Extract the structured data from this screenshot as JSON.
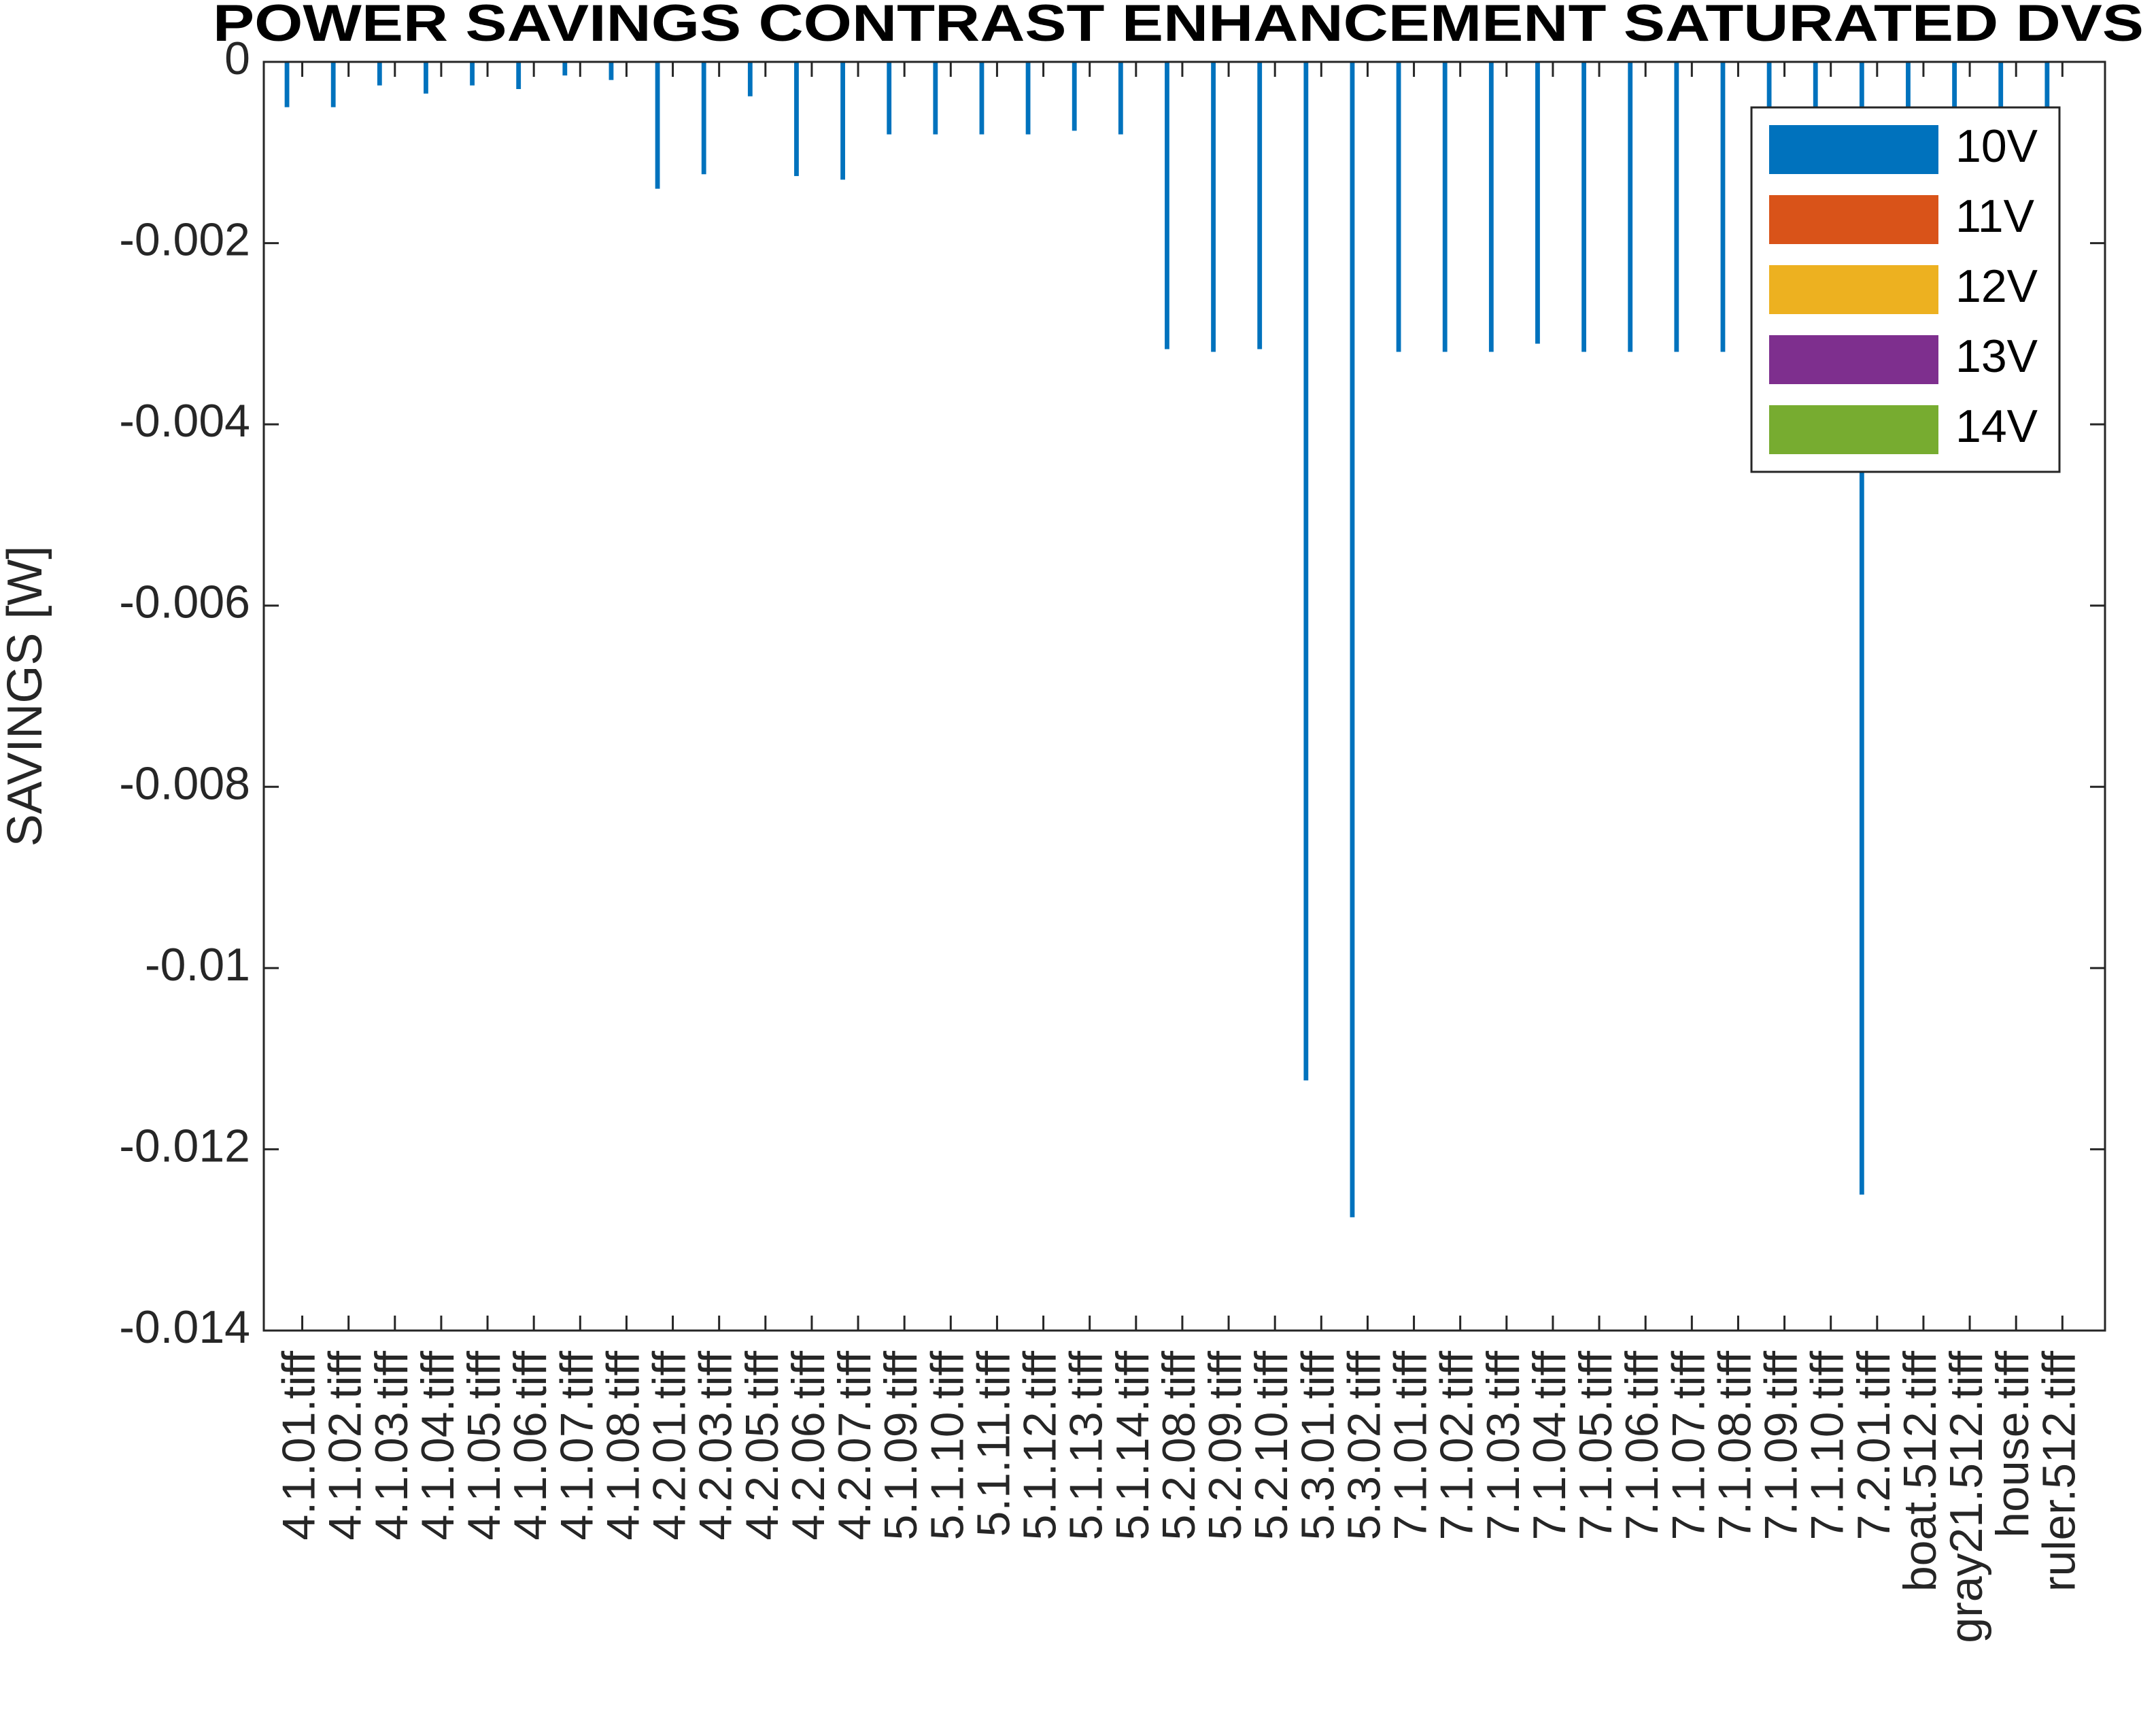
{
  "chart_data": {
    "type": "bar",
    "title": "POWER SAVINGS CONTRAST ENHANCEMENT SATURATED DVS",
    "y_label": "SAVINGS  [W]",
    "categories": [
      "4.1.01.tiff",
      "4.1.02.tiff",
      "4.1.03.tiff",
      "4.1.04.tiff",
      "4.1.05.tiff",
      "4.1.06.tiff",
      "4.1.07.tiff",
      "4.1.08.tiff",
      "4.2.01.tiff",
      "4.2.03.tiff",
      "4.2.05.tiff",
      "4.2.06.tiff",
      "4.2.07.tiff",
      "5.1.09.tiff",
      "5.1.10.tiff",
      "5.1.11.tiff",
      "5.1.12.tiff",
      "5.1.13.tiff",
      "5.1.14.tiff",
      "5.2.08.tiff",
      "5.2.09.tiff",
      "5.2.10.tiff",
      "5.3.01.tiff",
      "5.3.02.tiff",
      "7.1.01.tiff",
      "7.1.02.tiff",
      "7.1.03.tiff",
      "7.1.04.tiff",
      "7.1.05.tiff",
      "7.1.06.tiff",
      "7.1.07.tiff",
      "7.1.08.tiff",
      "7.1.09.tiff",
      "7.1.10.tiff",
      "7.2.01.tiff",
      "boat.512.tiff",
      "gray21.512.tiff",
      "house.tiff",
      "ruler.512.tiff"
    ],
    "series": [
      {
        "name": "10V",
        "color": "#0072bd",
        "values": [
          -0.0005,
          -0.0005,
          -0.00026,
          -0.00035,
          -0.00026,
          -0.0003,
          -0.00015,
          -0.0002,
          -0.0014,
          -0.00124,
          -0.00038,
          -0.00126,
          -0.0013,
          -0.0008,
          -0.0008,
          -0.0008,
          -0.0008,
          -0.00076,
          -0.0008,
          -0.00317,
          -0.0032,
          -0.00317,
          -0.01124,
          -0.01275,
          -0.0032,
          -0.0032,
          -0.0032,
          -0.00311,
          -0.0032,
          -0.0032,
          -0.0032,
          -0.0032,
          -0.0032,
          -0.0032,
          -0.0125,
          -0.0032,
          -0.0032,
          -0.0032,
          -0.0032
        ]
      },
      {
        "name": "11V",
        "color": "#d95319",
        "values": [
          0,
          0,
          0,
          0,
          0,
          0,
          0,
          0,
          0,
          0,
          0,
          0,
          0,
          0,
          0,
          0,
          0,
          0,
          0,
          0,
          0,
          0,
          0,
          0,
          0,
          0,
          0,
          0,
          0,
          0,
          0,
          0,
          0,
          0,
          0,
          0,
          0,
          0,
          0
        ]
      },
      {
        "name": "12V",
        "color": "#edb120",
        "values": [
          0,
          0,
          0,
          0,
          0,
          0,
          0,
          0,
          0,
          0,
          0,
          0,
          0,
          0,
          0,
          0,
          0,
          0,
          0,
          0,
          0,
          0,
          0,
          0,
          0,
          0,
          0,
          0,
          0,
          0,
          0,
          0,
          0,
          0,
          0,
          0,
          0,
          0,
          0
        ]
      },
      {
        "name": "13V",
        "color": "#7e2f8e",
        "values": [
          0,
          0,
          0,
          0,
          0,
          0,
          0,
          0,
          0,
          0,
          0,
          0,
          0,
          0,
          0,
          0,
          0,
          0,
          0,
          0,
          0,
          0,
          0,
          0,
          0,
          0,
          0,
          0,
          0,
          0,
          0,
          0,
          0,
          0,
          0,
          0,
          0,
          0,
          0
        ]
      },
      {
        "name": "14V",
        "color": "#77ac30",
        "values": [
          0,
          0,
          0,
          0,
          0,
          0,
          0,
          0,
          0,
          0,
          0,
          0,
          0,
          0,
          0,
          0,
          0,
          0,
          0,
          0,
          0,
          0,
          0,
          0,
          0,
          0,
          0,
          0,
          0,
          0,
          0,
          0,
          0,
          0,
          0,
          0,
          0,
          0,
          0
        ]
      }
    ],
    "ylim": [
      -0.014,
      0
    ],
    "yticks": [
      -0.014,
      -0.012,
      -0.01,
      -0.008,
      -0.006,
      -0.004,
      -0.002,
      0
    ],
    "legend": "northeast"
  }
}
